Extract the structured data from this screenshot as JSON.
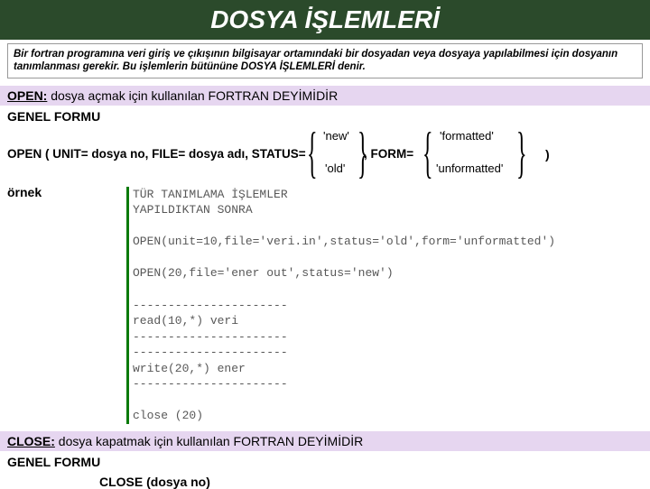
{
  "colors": {
    "header_bg": "#2b4a2b",
    "header_fg": "#ffffff",
    "strip_bg": "#e6d6f0",
    "code_bar": "#0a7a0a",
    "border": "#999999"
  },
  "title": "DOSYA İŞLEMLERİ",
  "intro": "Bir fortran programına veri giriş ve çıkışının bilgisayar ortamındaki bir dosyadan veya dosyaya yapılabilmesi için dosyanın tanımlanması gerekir. Bu işlemlerin bütününe DOSYA İŞLEMLERİ denir.",
  "open_strip_kw": "OPEN:",
  "open_strip_text": " dosya açmak için kullanılan FORTRAN DEYİMİDİR",
  "genel_formu": "GENEL FORMU",
  "open_signature_left": "OPEN ( UNIT= dosya no, FILE= dosya adı, STATUS=",
  "status_options": {
    "a": "'new'",
    "b": "'old'"
  },
  "form_kw": ", FORM=",
  "form_options": {
    "a": "'formatted'",
    "b": "'unformatted'"
  },
  "close_paren": ")",
  "ornek_label": "örnek",
  "code_lines": [
    "TÜR TANIMLAMA İŞLEMLER",
    "YAPILDIKTAN SONRA",
    "",
    "OPEN(unit=10,file='veri.in',status='old',form='unformatted')",
    "",
    "OPEN(20,file='ener out',status='new')",
    "",
    "----------------------",
    "read(10,*) veri",
    "----------------------",
    "----------------------",
    "write(20,*) ener",
    "----------------------",
    "",
    "close (20)"
  ],
  "close_strip_kw": "CLOSE:",
  "close_strip_text": " dosya kapatmak için kullanılan FORTRAN DEYİMİDİR",
  "close_call": "CLOSE (dosya no)"
}
